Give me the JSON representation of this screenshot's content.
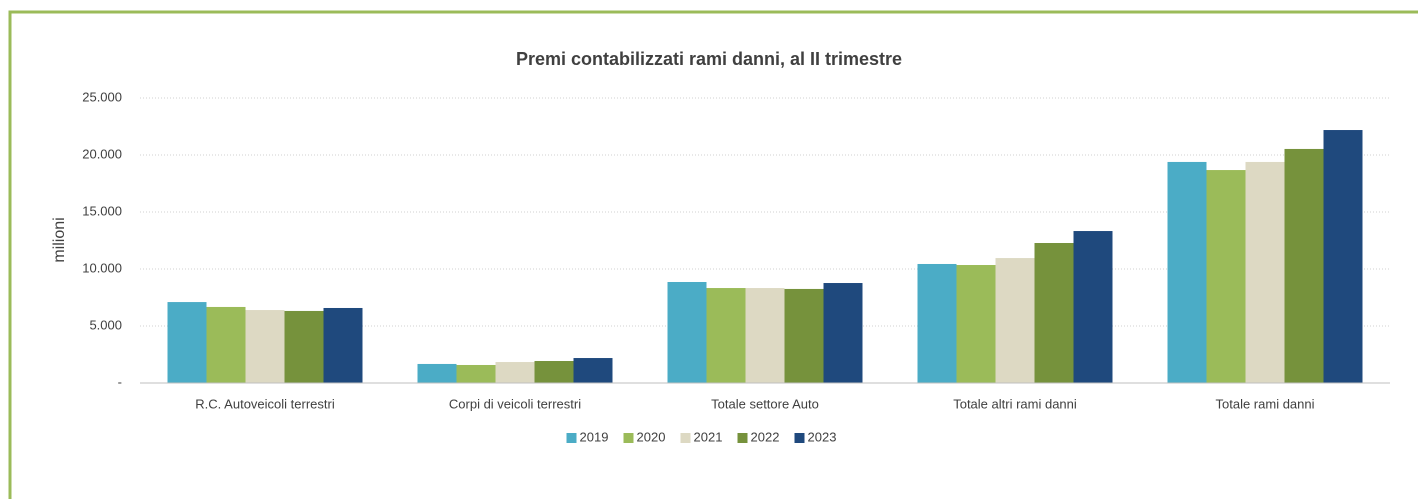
{
  "chart_data": {
    "type": "bar",
    "title": "Premi contabilizzati rami danni, al II trimestre",
    "y_label": "milioni",
    "categories": [
      "R.C. Autoveicoli terrestri",
      "Corpi di veicoli terrestri",
      "Totale settore Auto",
      "Totale altri rami danni",
      "Totale rami danni"
    ],
    "series": [
      {
        "name": "2019",
        "color": "#4bacc6",
        "values": [
          7100,
          1670,
          8860,
          10440,
          19390
        ]
      },
      {
        "name": "2020",
        "color": "#9bbb59",
        "values": [
          6670,
          1580,
          8330,
          10350,
          18680
        ]
      },
      {
        "name": "2021",
        "color": "#ddd9c3",
        "values": [
          6400,
          1840,
          8330,
          10960,
          19390
        ]
      },
      {
        "name": "2022",
        "color": "#76923c",
        "values": [
          6320,
          1930,
          8250,
          12280,
          20530
        ]
      },
      {
        "name": "2023",
        "color": "#1f497d",
        "values": [
          6580,
          2190,
          8770,
          13330,
          22190
        ]
      }
    ],
    "ylim": [
      0,
      25000
    ],
    "yticks": [
      {
        "value": 0,
        "label": "-"
      },
      {
        "value": 5000,
        "label": "5.000"
      },
      {
        "value": 10000,
        "label": "10.000"
      },
      {
        "value": 15000,
        "label": "15.000"
      },
      {
        "value": 20000,
        "label": "20.000"
      },
      {
        "value": 25000,
        "label": "25.000"
      }
    ],
    "grid": true,
    "legend": "bottom"
  }
}
